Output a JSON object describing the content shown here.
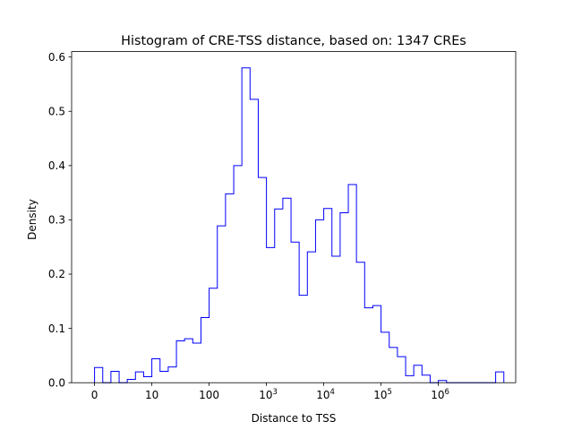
{
  "chart_data": {
    "type": "histogram-step",
    "title": "Histogram of CRE-TSS distance, based on: 1347 CREs",
    "xlabel": "Distance to TSS",
    "ylabel": "Density",
    "x_scale": "symlog",
    "xlim": [
      -0.4,
      7.35
    ],
    "ylim": [
      0,
      0.61
    ],
    "yticks": [
      0.0,
      0.1,
      0.2,
      0.3,
      0.4,
      0.5,
      0.6
    ],
    "ytick_labels": [
      "0.0",
      "0.1",
      "0.2",
      "0.3",
      "0.4",
      "0.5",
      "0.6"
    ],
    "xticks": [
      {
        "value": 0,
        "base": "0",
        "exp": ""
      },
      {
        "value": 1,
        "base": "10",
        "exp": ""
      },
      {
        "value": 2,
        "base": "100",
        "exp": ""
      },
      {
        "value": 3,
        "base": "10",
        "exp": "3"
      },
      {
        "value": 4,
        "base": "10",
        "exp": "4"
      },
      {
        "value": 5,
        "base": "10",
        "exp": "5"
      },
      {
        "value": 6,
        "base": "10",
        "exp": "6"
      }
    ],
    "series_color": "#0000ff",
    "bins": {
      "edges": [
        0.0,
        0.143,
        0.286,
        0.429,
        0.571,
        0.714,
        0.857,
        1.0,
        1.143,
        1.286,
        1.429,
        1.571,
        1.714,
        1.857,
        2.0,
        2.143,
        2.286,
        2.429,
        2.571,
        2.714,
        2.857,
        3.0,
        3.143,
        3.286,
        3.429,
        3.571,
        3.714,
        3.857,
        4.0,
        4.143,
        4.286,
        4.429,
        4.571,
        4.714,
        4.857,
        5.0,
        5.143,
        5.286,
        5.429,
        5.571,
        5.714,
        5.857,
        6.0,
        6.143,
        6.286,
        6.429,
        6.571,
        6.714,
        6.857,
        7.0,
        7.143
      ],
      "density": [
        0.028,
        0.0,
        0.021,
        0.0,
        0.006,
        0.02,
        0.011,
        0.044,
        0.021,
        0.029,
        0.077,
        0.081,
        0.073,
        0.12,
        0.174,
        0.289,
        0.348,
        0.4,
        0.58,
        0.522,
        0.378,
        0.249,
        0.32,
        0.34,
        0.259,
        0.161,
        0.241,
        0.3,
        0.321,
        0.233,
        0.313,
        0.365,
        0.222,
        0.138,
        0.142,
        0.093,
        0.065,
        0.048,
        0.013,
        0.032,
        0.014,
        0.0,
        0.004,
        0.0,
        0.0,
        0.0,
        0.0,
        0.0,
        0.0,
        0.02
      ]
    }
  }
}
